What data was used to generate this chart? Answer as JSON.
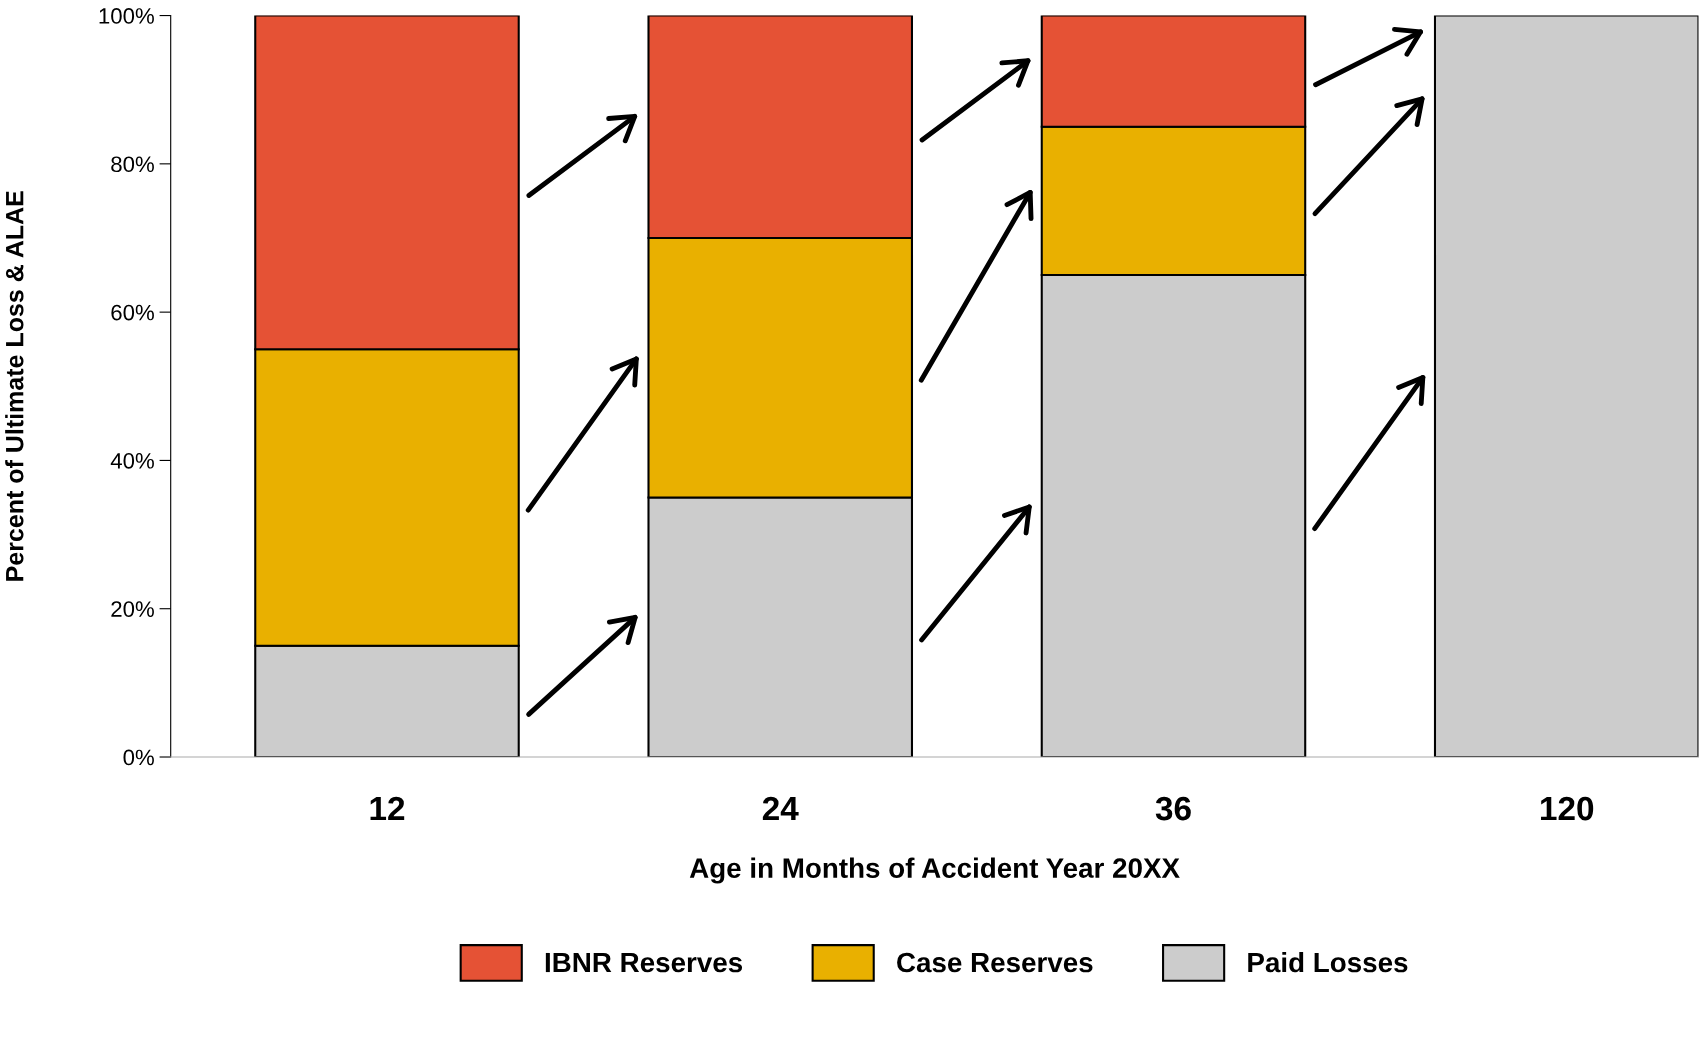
{
  "chart_data": {
    "type": "bar",
    "stacked": true,
    "xlabel": "Age in Months of Accident Year 20XX",
    "ylabel": "Percent of Ultimate Loss & ALAE",
    "categories": [
      "12",
      "24",
      "36",
      "120"
    ],
    "series": [
      {
        "name": "Paid Losses",
        "color": "#cccccc",
        "values": [
          15,
          35,
          65,
          100
        ]
      },
      {
        "name": "Case Reserves",
        "color": "#e9b000",
        "values": [
          40,
          35,
          20,
          0
        ]
      },
      {
        "name": "IBNR Reserves",
        "color": "#e55235",
        "values": [
          45,
          30,
          15,
          0
        ]
      }
    ],
    "ylim": [
      0,
      100
    ],
    "yticks": [
      {
        "value": 0,
        "label": "0%"
      },
      {
        "value": 20,
        "label": "20%"
      },
      {
        "value": 40,
        "label": "40%"
      },
      {
        "value": 60,
        "label": "60%"
      },
      {
        "value": 80,
        "label": "80%"
      },
      {
        "value": 100,
        "label": "100%"
      }
    ],
    "grid": false,
    "legend": "bottom"
  }
}
